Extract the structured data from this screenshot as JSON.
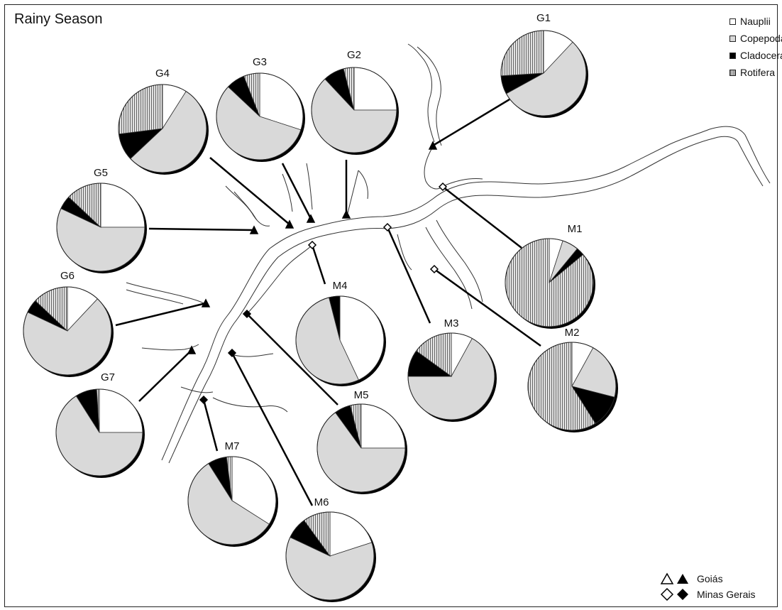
{
  "title": "Rainy Season",
  "legend": {
    "taxa": [
      {
        "name": "Nauplii",
        "color": "#ffffff"
      },
      {
        "name": "Copepoda",
        "color": "#d9d9d9"
      },
      {
        "name": "Cladocera",
        "color": "#000000"
      },
      {
        "name": "Rotifera",
        "color": "#8c8c8c"
      }
    ],
    "states": [
      {
        "name": "Goiás",
        "symbol": "triangle"
      },
      {
        "name": "Minas Gerais",
        "symbol": "diamond"
      }
    ]
  },
  "chart_data": {
    "type": "pie",
    "categories": [
      "Nauplii",
      "Copepoda",
      "Cladocera",
      "Rotifera"
    ],
    "sites": [
      {
        "label": "G1",
        "state": "Goiás",
        "values": [
          12,
          55,
          7,
          26
        ]
      },
      {
        "label": "G2",
        "state": "Goiás",
        "values": [
          25,
          63,
          8,
          4
        ]
      },
      {
        "label": "G3",
        "state": "Goiás",
        "values": [
          30,
          57,
          7,
          6
        ]
      },
      {
        "label": "G4",
        "state": "Goiás",
        "values": [
          9,
          54,
          10,
          27
        ]
      },
      {
        "label": "G5",
        "state": "Goiás",
        "values": [
          25,
          57,
          5,
          13
        ]
      },
      {
        "label": "G6",
        "state": "Goiás",
        "values": [
          12,
          70,
          5,
          13
        ]
      },
      {
        "label": "G7",
        "state": "Goiás",
        "values": [
          25,
          66,
          8,
          1
        ]
      },
      {
        "label": "M1",
        "state": "Minas Gerais",
        "values": [
          5,
          6,
          3,
          86
        ]
      },
      {
        "label": "M2",
        "state": "Minas Gerais",
        "values": [
          8,
          21,
          12,
          59
        ]
      },
      {
        "label": "M3",
        "state": "Minas Gerais",
        "values": [
          8,
          67,
          10,
          15
        ]
      },
      {
        "label": "M4",
        "state": "Minas Gerais",
        "values": [
          43,
          53,
          4,
          0
        ]
      },
      {
        "label": "M5",
        "state": "Minas Gerais",
        "values": [
          25,
          65,
          6,
          4
        ]
      },
      {
        "label": "M6",
        "state": "Minas Gerais",
        "values": [
          20,
          62,
          8,
          10
        ]
      },
      {
        "label": "M7",
        "state": "Minas Gerais",
        "values": [
          34,
          57,
          7,
          2
        ]
      }
    ]
  }
}
